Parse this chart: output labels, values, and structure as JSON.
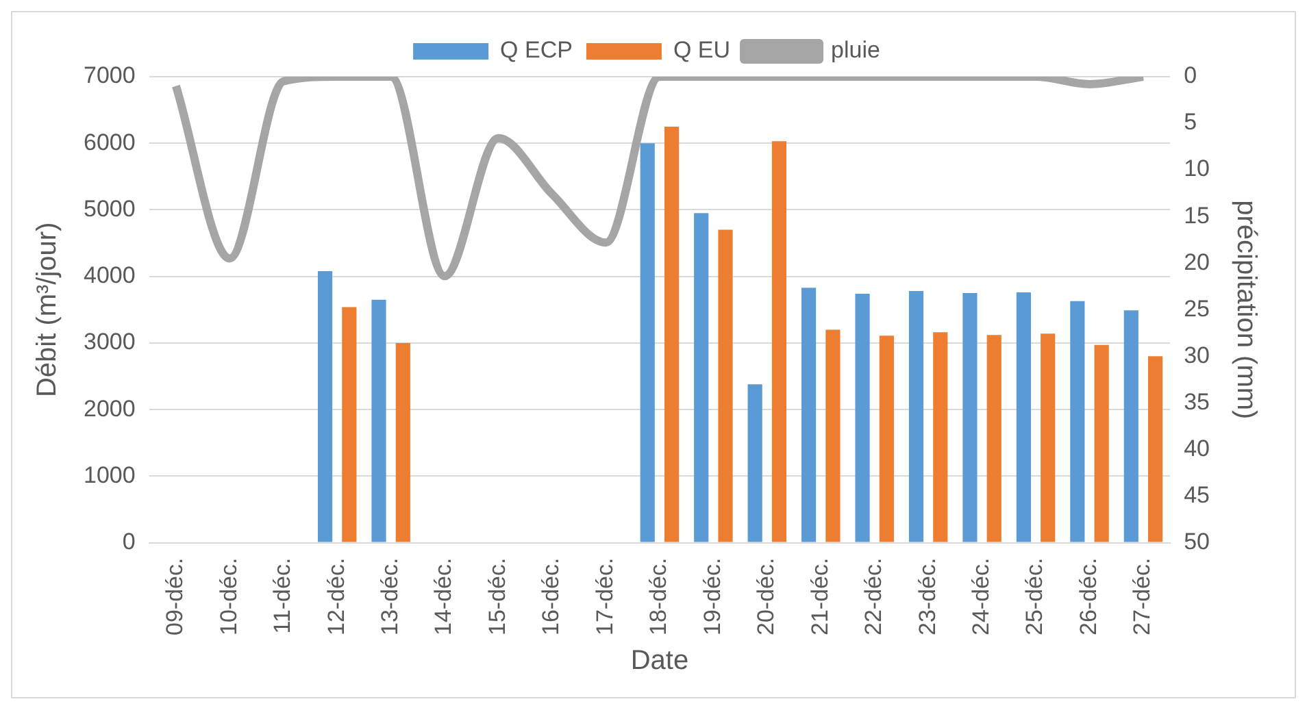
{
  "chart_data": {
    "type": "bar",
    "xlabel": "Date",
    "ylabel": "Débit (m³/jour)",
    "y2label": "précipitation (mm)",
    "categories": [
      "09-déc.",
      "10-déc.",
      "11-déc.",
      "12-déc.",
      "13-déc.",
      "14-déc.",
      "15-déc.",
      "16-déc.",
      "17-déc.",
      "18-déc.",
      "19-déc.",
      "20-déc.",
      "21-déc.",
      "22-déc.",
      "23-déc.",
      "24-déc.",
      "25-déc.",
      "26-déc.",
      "27-déc."
    ],
    "series": [
      {
        "name": "Q ECP",
        "color": "#5b9bd5",
        "values": [
          null,
          null,
          null,
          4080,
          3650,
          null,
          null,
          null,
          null,
          6000,
          4950,
          2380,
          3830,
          3740,
          3780,
          3750,
          3760,
          3630,
          3490
        ]
      },
      {
        "name": "Q EU",
        "color": "#ed7d31",
        "values": [
          null,
          null,
          null,
          3540,
          3000,
          null,
          null,
          null,
          null,
          6250,
          4700,
          6030,
          3200,
          3110,
          3160,
          3120,
          3140,
          2970,
          2800
        ]
      },
      {
        "name": "pluie",
        "type": "line",
        "axis": "y2",
        "color": "#a5a5a5",
        "marker": "none",
        "values": [
          1,
          19.5,
          0.5,
          0,
          0,
          21.4,
          6.6,
          12.6,
          17.8,
          0,
          0,
          0,
          0,
          0,
          0,
          0,
          0,
          0.8,
          0
        ]
      }
    ],
    "ylim": [
      0,
      7000
    ],
    "yticks": [
      0,
      1000,
      2000,
      3000,
      4000,
      5000,
      6000,
      7000
    ],
    "y2lim": [
      50,
      0
    ],
    "y2ticks": [
      50,
      45,
      40,
      35,
      30,
      25,
      20,
      15,
      10,
      5,
      0
    ],
    "grid": "y",
    "legend": "top"
  }
}
